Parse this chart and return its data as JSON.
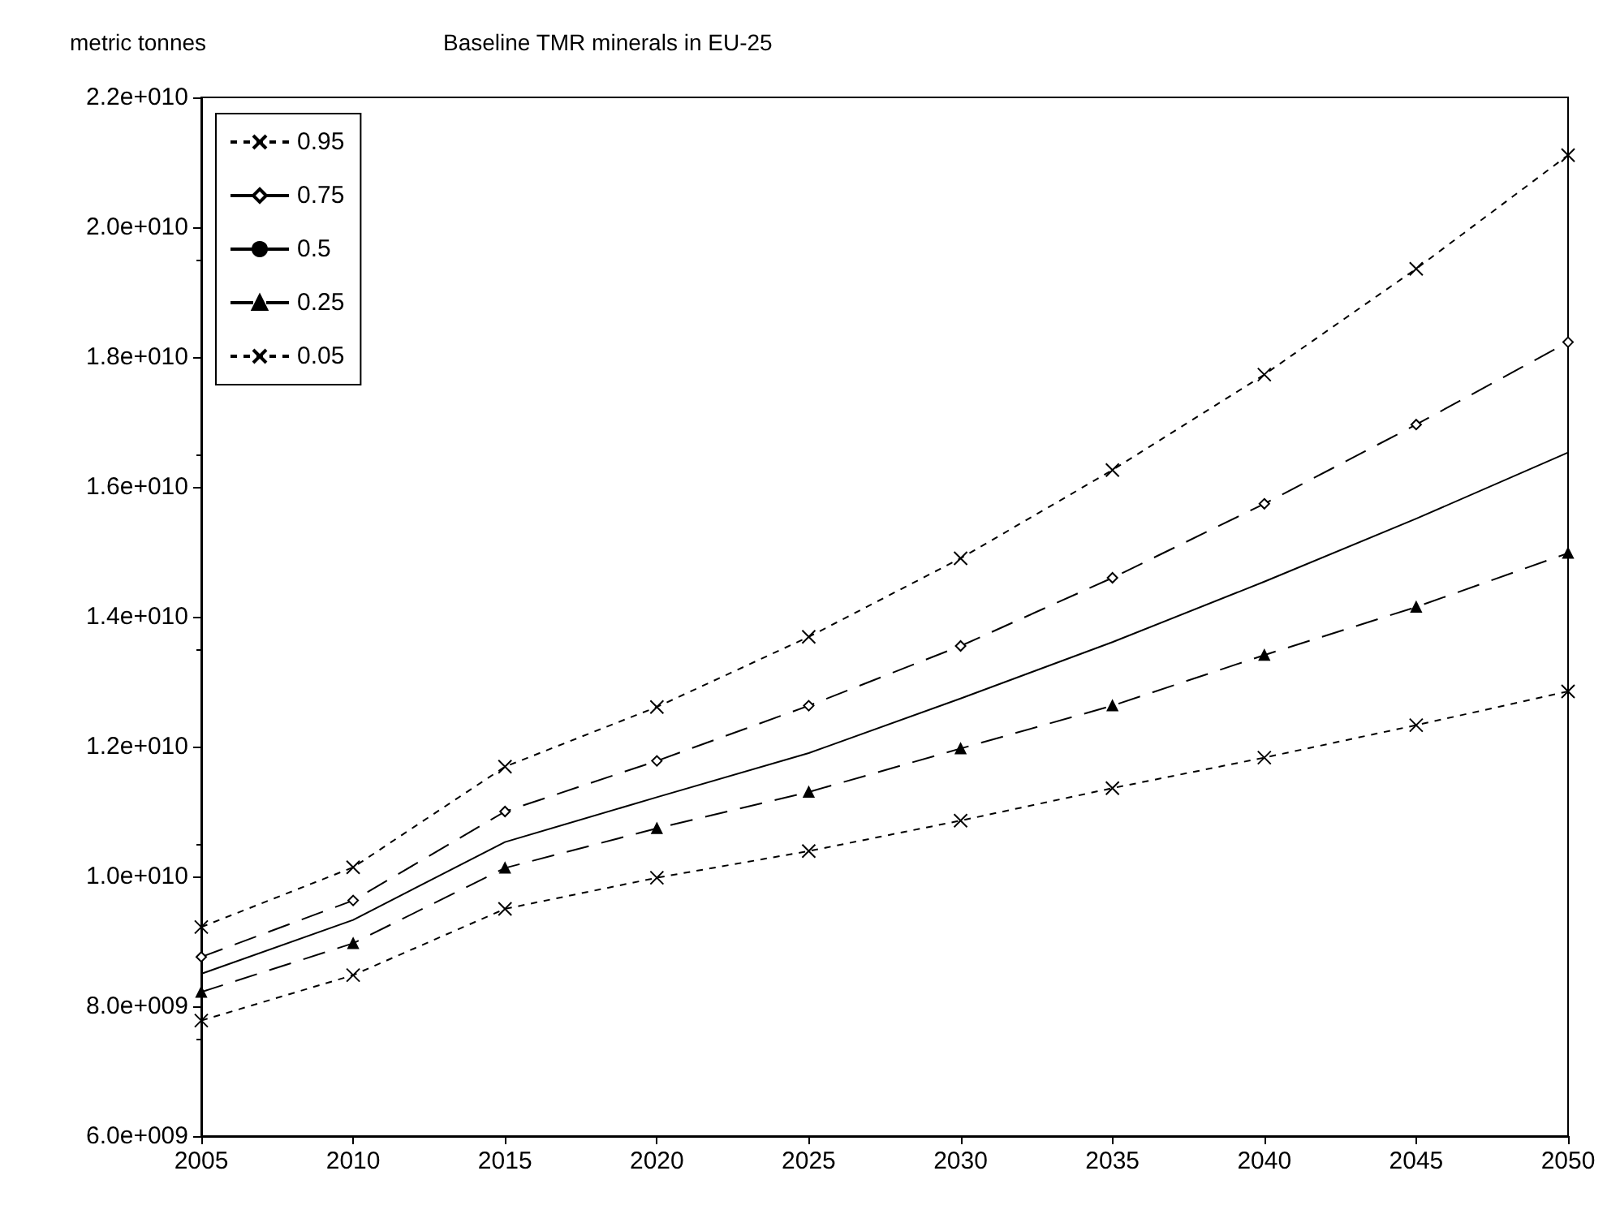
{
  "chart_data": {
    "type": "line",
    "title": "Baseline TMR minerals in EU-25",
    "ylabel": "metric tonnes",
    "x": [
      2005,
      2010,
      2015,
      2020,
      2025,
      2030,
      2035,
      2040,
      2045,
      2050
    ],
    "series": [
      {
        "name": "0.95",
        "color": "#000000",
        "marker": "cross",
        "line_style": "dotted",
        "values": [
          9220000000,
          10140000000,
          11690000000,
          12610000000,
          13690000000,
          14900000000,
          16260000000,
          17730000000,
          19360000000,
          21110000000
        ]
      },
      {
        "name": "0.75",
        "color": "#000000",
        "marker": "diamond",
        "line_style": "dashed",
        "values": [
          8760000000,
          9630000000,
          11000000000,
          11780000000,
          12630000000,
          13550000000,
          14600000000,
          15740000000,
          16960000000,
          18230000000
        ]
      },
      {
        "name": "0.5",
        "color": "#000000",
        "marker": "none",
        "line_style": "solid",
        "values": [
          8500000000,
          9330000000,
          10530000000,
          11220000000,
          11900000000,
          12740000000,
          13610000000,
          14540000000,
          15510000000,
          16530000000
        ]
      },
      {
        "name": "0.25",
        "color": "#000000",
        "marker": "triangle",
        "line_style": "dashed",
        "values": [
          8220000000,
          8970000000,
          10130000000,
          10740000000,
          11300000000,
          11970000000,
          12630000000,
          13410000000,
          14150000000,
          14980000000
        ]
      },
      {
        "name": "0.05",
        "color": "#000000",
        "marker": "cross",
        "line_style": "dotted",
        "values": [
          7780000000,
          8480000000,
          9500000000,
          9980000000,
          10390000000,
          10860000000,
          11360000000,
          11830000000,
          12330000000,
          12850000000
        ]
      }
    ],
    "xlim": [
      2005,
      2050
    ],
    "xticks": [
      2005,
      2010,
      2015,
      2020,
      2025,
      2030,
      2035,
      2040,
      2045,
      2050
    ],
    "ylim": [
      6000000000,
      22000000000
    ],
    "yticks": [
      {
        "value": 6000000000,
        "label": "6.0e+009"
      },
      {
        "value": 8000000000,
        "label": "8.0e+009"
      },
      {
        "value": 10000000000,
        "label": "1.0e+010"
      },
      {
        "value": 12000000000,
        "label": "1.2e+010"
      },
      {
        "value": 14000000000,
        "label": "1.4e+010"
      },
      {
        "value": 16000000000,
        "label": "1.6e+010"
      },
      {
        "value": 18000000000,
        "label": "1.8e+010"
      },
      {
        "value": 20000000000,
        "label": "2.0e+010"
      },
      {
        "value": 22000000000,
        "label": "2.2e+010"
      }
    ],
    "grid": false,
    "legend": "top left"
  }
}
